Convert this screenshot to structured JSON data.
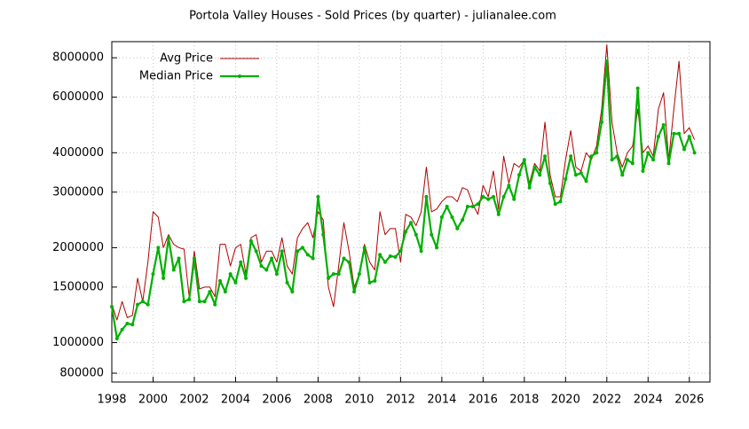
{
  "chart_data": {
    "type": "line",
    "title": "Portola Valley Houses - Sold Prices (by quarter) - julianalee.com",
    "log_y": true,
    "grid": true,
    "legend": "upper-left",
    "xlim": [
      1998,
      2027
    ],
    "xticks": [
      1998,
      2000,
      2002,
      2004,
      2006,
      2008,
      2010,
      2012,
      2014,
      2016,
      2018,
      2020,
      2022,
      2024,
      2026
    ],
    "ylim": [
      750000,
      9000000
    ],
    "yticks": [
      800000,
      1000000,
      1500000,
      2000000,
      3000000,
      4000000,
      6000000,
      8000000
    ],
    "x": [
      1998,
      1998.25,
      1998.5,
      1998.75,
      1999,
      1999.25,
      1999.5,
      1999.75,
      2000,
      2000.25,
      2000.5,
      2000.75,
      2001,
      2001.25,
      2001.5,
      2001.75,
      2002,
      2002.25,
      2002.5,
      2002.75,
      2003,
      2003.25,
      2003.5,
      2003.75,
      2004,
      2004.25,
      2004.5,
      2004.75,
      2005,
      2005.25,
      2005.5,
      2005.75,
      2006,
      2006.25,
      2006.5,
      2006.75,
      2007,
      2007.25,
      2007.5,
      2007.75,
      2008,
      2008.25,
      2008.5,
      2008.75,
      2009,
      2009.25,
      2009.5,
      2009.75,
      2010,
      2010.25,
      2010.5,
      2010.75,
      2011,
      2011.25,
      2011.5,
      2011.75,
      2012,
      2012.25,
      2012.5,
      2012.75,
      2013,
      2013.25,
      2013.5,
      2013.75,
      2014,
      2014.25,
      2014.5,
      2014.75,
      2015,
      2015.25,
      2015.5,
      2015.75,
      2016,
      2016.25,
      2016.5,
      2016.75,
      2017,
      2017.25,
      2017.5,
      2017.75,
      2018,
      2018.25,
      2018.5,
      2018.75,
      2019,
      2019.25,
      2019.5,
      2019.75,
      2020,
      2020.25,
      2020.5,
      2020.75,
      2021,
      2021.25,
      2021.5,
      2021.75,
      2022,
      2022.25,
      2022.5,
      2022.75,
      2023,
      2023.25,
      2023.5,
      2023.75,
      2024,
      2024.25,
      2024.5,
      2024.75,
      2025,
      2025.25,
      2025.5,
      2025.75,
      2026,
      2026.25
    ],
    "series": [
      {
        "name": "Avg Price",
        "color": "#b00000",
        "markers": false,
        "values": [
          1320000,
          1180000,
          1350000,
          1200000,
          1220000,
          1600000,
          1350000,
          1800000,
          2600000,
          2500000,
          2000000,
          2200000,
          2050000,
          2000000,
          1980000,
          1400000,
          1950000,
          1480000,
          1500000,
          1500000,
          1400000,
          2050000,
          2050000,
          1750000,
          2000000,
          2050000,
          1650000,
          2150000,
          2200000,
          1800000,
          1950000,
          1950000,
          1800000,
          2150000,
          1750000,
          1650000,
          2150000,
          2300000,
          2400000,
          2150000,
          2600000,
          2450000,
          1500000,
          1300000,
          1750000,
          2400000,
          1950000,
          1500000,
          1650000,
          2050000,
          1800000,
          1700000,
          2600000,
          2200000,
          2300000,
          2300000,
          1800000,
          2550000,
          2500000,
          2350000,
          2600000,
          3600000,
          2600000,
          2650000,
          2800000,
          2900000,
          2900000,
          2800000,
          3100000,
          3050000,
          2750000,
          2550000,
          3150000,
          2900000,
          3500000,
          2650000,
          3900000,
          3200000,
          3700000,
          3600000,
          3800000,
          3200000,
          3700000,
          3500000,
          5000000,
          3400000,
          2900000,
          2900000,
          3800000,
          4700000,
          3600000,
          3500000,
          4000000,
          3800000,
          4200000,
          5500000,
          8800000,
          5000000,
          4000000,
          3600000,
          4000000,
          4200000,
          5500000,
          4000000,
          4200000,
          3900000,
          5500000,
          6200000,
          3800000,
          5500000,
          7800000,
          4600000,
          4800000,
          4400000
        ]
      },
      {
        "name": "Median Price",
        "color": "#00b000",
        "markers": true,
        "values": [
          1300000,
          1030000,
          1100000,
          1150000,
          1140000,
          1320000,
          1350000,
          1320000,
          1650000,
          2000000,
          1600000,
          2150000,
          1700000,
          1850000,
          1350000,
          1370000,
          1850000,
          1350000,
          1350000,
          1450000,
          1320000,
          1570000,
          1450000,
          1650000,
          1550000,
          1800000,
          1600000,
          2100000,
          1950000,
          1750000,
          1700000,
          1850000,
          1650000,
          1950000,
          1550000,
          1450000,
          1950000,
          2000000,
          1900000,
          1850000,
          2900000,
          2200000,
          1600000,
          1650000,
          1650000,
          1850000,
          1800000,
          1450000,
          1650000,
          2000000,
          1550000,
          1570000,
          1900000,
          1800000,
          1880000,
          1870000,
          1950000,
          2250000,
          2400000,
          2200000,
          1950000,
          2900000,
          2200000,
          2000000,
          2500000,
          2700000,
          2500000,
          2300000,
          2450000,
          2700000,
          2700000,
          2750000,
          2900000,
          2850000,
          2900000,
          2550000,
          2900000,
          3150000,
          2850000,
          3400000,
          3800000,
          3100000,
          3600000,
          3400000,
          3900000,
          3200000,
          2750000,
          2800000,
          3300000,
          3900000,
          3400000,
          3450000,
          3250000,
          3900000,
          4000000,
          5000000,
          7800000,
          3800000,
          3900000,
          3400000,
          3800000,
          3700000,
          6400000,
          3500000,
          4000000,
          3800000,
          4500000,
          4900000,
          3700000,
          4600000,
          4600000,
          4100000,
          4500000,
          4000000
        ]
      }
    ]
  }
}
